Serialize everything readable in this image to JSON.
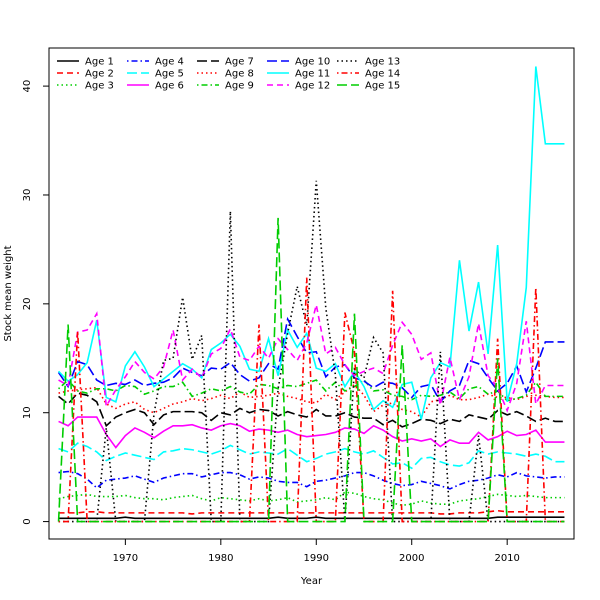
{
  "chart_data": {
    "type": "line",
    "title": "",
    "xlabel": "Year",
    "ylabel": "Stock mean weight",
    "xlim": [
      1962,
      2017
    ],
    "ylim": [
      -1.6,
      43.5
    ],
    "xticks": [
      1970,
      1980,
      1990,
      2000,
      2010
    ],
    "yticks": [
      0,
      10,
      20,
      30,
      40
    ],
    "grid": false,
    "legend_position": "top-left",
    "x": [
      1963,
      1964,
      1965,
      1966,
      1967,
      1968,
      1969,
      1970,
      1971,
      1972,
      1973,
      1974,
      1975,
      1976,
      1977,
      1978,
      1979,
      1980,
      1981,
      1982,
      1983,
      1984,
      1985,
      1986,
      1987,
      1988,
      1989,
      1990,
      1991,
      1992,
      1993,
      1994,
      1995,
      1996,
      1997,
      1998,
      1999,
      2000,
      2001,
      2002,
      2003,
      2004,
      2005,
      2006,
      2007,
      2008,
      2009,
      2010,
      2011,
      2012,
      2013,
      2014,
      2015,
      2016
    ],
    "series": [
      {
        "name": "Age 1",
        "color": "#000000",
        "dash": "solid",
        "values": [
          0.3,
          0.3,
          0.3,
          0.3,
          0.3,
          0.3,
          0.3,
          0.4,
          0.3,
          0.3,
          0.3,
          0.3,
          0.3,
          0.3,
          0.3,
          0.3,
          0.3,
          0.3,
          0.3,
          0.3,
          0.3,
          0.3,
          0.3,
          0.4,
          0.3,
          0.3,
          0.3,
          0.4,
          0.3,
          0.3,
          0.3,
          0.3,
          0.3,
          0.3,
          0.3,
          0.3,
          0.3,
          0.3,
          0.3,
          0.3,
          0.3,
          0.3,
          0.3,
          0.3,
          0.3,
          0.3,
          0.4,
          0.4,
          0.4,
          0.4,
          0.4,
          0.4,
          0.4,
          0.4
        ]
      },
      {
        "name": "Age 2",
        "color": "#ff0000",
        "dash": "dashed",
        "values": [
          0.8,
          0.8,
          0.8,
          0.9,
          0.9,
          0.8,
          0.8,
          0.8,
          0.8,
          0.8,
          0.8,
          0.8,
          0.8,
          0.8,
          0.7,
          0.8,
          0.8,
          0.8,
          0.8,
          0.8,
          0.8,
          0.8,
          0.8,
          0.8,
          0.8,
          0.8,
          0.8,
          0.8,
          0.8,
          0.8,
          0.8,
          0.8,
          0.8,
          0.8,
          0.8,
          0.8,
          0.8,
          0.8,
          0.8,
          0.8,
          0.7,
          0.7,
          0.8,
          0.8,
          0.8,
          0.9,
          1.0,
          0.9,
          0.9,
          0.9,
          0.9,
          0.9,
          0.9,
          0.9
        ]
      },
      {
        "name": "Age 3",
        "color": "#00cd00",
        "dash": "dotted",
        "values": [
          2.1,
          2.3,
          2.4,
          2.5,
          2.3,
          2.3,
          2.3,
          2.4,
          2.2,
          2.1,
          2.1,
          2.0,
          2.2,
          2.3,
          2.4,
          2.1,
          1.9,
          2.2,
          2.1,
          2.0,
          1.9,
          2.1,
          1.9,
          2.0,
          2.2,
          1.8,
          1.9,
          2.0,
          2.2,
          2.0,
          2.7,
          2.6,
          2.3,
          2.1,
          2.0,
          1.7,
          1.5,
          1.6,
          1.9,
          1.7,
          1.6,
          1.6,
          1.9,
          2.0,
          2.1,
          2.3,
          2.5,
          2.4,
          2.3,
          2.4,
          2.3,
          2.2,
          2.2,
          2.2
        ]
      },
      {
        "name": "Age 4",
        "color": "#0000ff",
        "dash": "dashdot",
        "values": [
          4.5,
          4.6,
          4.4,
          3.9,
          3.1,
          3.8,
          3.9,
          4.0,
          4.2,
          3.9,
          3.6,
          4.0,
          4.2,
          4.4,
          4.4,
          4.1,
          4.3,
          4.5,
          4.5,
          4.3,
          3.9,
          4.1,
          4.0,
          3.7,
          3.6,
          3.6,
          3.2,
          3.7,
          3.8,
          4.0,
          4.2,
          4.5,
          4.5,
          4.2,
          3.8,
          3.5,
          3.3,
          3.4,
          3.7,
          3.5,
          3.3,
          3.0,
          3.4,
          3.7,
          3.8,
          4.0,
          4.3,
          4.1,
          4.5,
          4.2,
          4.1,
          4.0,
          4.1,
          4.1
        ]
      },
      {
        "name": "Age 5",
        "color": "#00ffff",
        "dash": "longdash",
        "values": [
          6.7,
          6.4,
          7.2,
          6.9,
          6.4,
          5.6,
          6.0,
          6.3,
          6.1,
          5.9,
          5.7,
          6.4,
          6.5,
          6.7,
          6.6,
          6.4,
          6.2,
          6.5,
          7.0,
          6.6,
          6.2,
          6.4,
          6.3,
          6.2,
          6.7,
          6.1,
          5.5,
          5.8,
          6.2,
          6.4,
          6.7,
          6.4,
          6.2,
          6.5,
          5.9,
          5.3,
          5.4,
          4.9,
          5.8,
          5.9,
          5.5,
          5.2,
          5.1,
          5.4,
          6.5,
          6.2,
          6.4,
          6.3,
          6.2,
          6.0,
          6.2,
          6.0,
          5.5,
          5.5
        ]
      },
      {
        "name": "Age 6",
        "color": "#ff00ff",
        "dash": "solid",
        "values": [
          9.2,
          8.8,
          9.6,
          9.6,
          9.6,
          8.0,
          6.8,
          7.9,
          8.6,
          8.2,
          7.7,
          8.3,
          8.8,
          8.8,
          8.9,
          8.6,
          8.4,
          8.8,
          9.0,
          8.8,
          8.3,
          8.5,
          8.4,
          8.2,
          8.4,
          8.0,
          7.8,
          7.9,
          8.0,
          8.2,
          8.6,
          8.5,
          8.1,
          8.8,
          8.4,
          7.8,
          7.4,
          7.6,
          7.4,
          7.6,
          6.9,
          7.5,
          7.2,
          7.2,
          8.2,
          7.5,
          7.8,
          8.3,
          7.9,
          8.0,
          8.4,
          7.3,
          7.3,
          7.3
        ]
      },
      {
        "name": "Age 7",
        "color": "#000000",
        "dash": "longdash",
        "values": [
          11.5,
          10.8,
          11.8,
          11.6,
          11.0,
          8.8,
          9.6,
          10.0,
          10.3,
          10.0,
          8.9,
          9.8,
          10.1,
          10.1,
          10.1,
          10.0,
          9.3,
          10.0,
          9.8,
          10.4,
          10.0,
          10.3,
          10.2,
          9.7,
          10.1,
          9.8,
          9.6,
          10.3,
          9.7,
          9.7,
          10.0,
          9.6,
          9.5,
          9.5,
          8.9,
          9.3,
          8.7,
          9.0,
          9.4,
          9.3,
          9.0,
          9.4,
          9.2,
          9.8,
          9.6,
          9.4,
          10.2,
          9.8,
          10.1,
          9.7,
          9.2,
          9.5,
          9.2,
          9.2
        ]
      },
      {
        "name": "Age 8",
        "color": "#ff0000",
        "dash": "dotted",
        "values": [
          11.8,
          12.0,
          12.1,
          12.2,
          12.3,
          10.8,
          10.4,
          10.8,
          11.0,
          10.3,
          10.0,
          10.4,
          10.8,
          11.0,
          11.3,
          11.1,
          11.3,
          11.6,
          11.3,
          11.9,
          11.4,
          11.5,
          11.6,
          11.8,
          11.5,
          11.3,
          11.0,
          10.9,
          11.7,
          11.2,
          11.9,
          12.6,
          11.6,
          10.1,
          10.7,
          10.9,
          10.3,
          10.1,
          9.6,
          11.0,
          11.2,
          11.6,
          11.2,
          11.2,
          11.4,
          11.7,
          11.4,
          11.4,
          11.2,
          11.5,
          11.6,
          11.5,
          11.4,
          11.4
        ]
      },
      {
        "name": "Age 9",
        "color": "#00cd00",
        "dash": "dashdot",
        "values": [
          12.2,
          13.0,
          12.0,
          11.8,
          12.2,
          12.2,
          12.0,
          12.5,
          12.4,
          11.7,
          12.0,
          12.4,
          12.4,
          12.8,
          11.5,
          11.8,
          12.2,
          12.0,
          12.4,
          11.9,
          11.7,
          12.6,
          12.5,
          12.2,
          12.5,
          12.4,
          12.7,
          13.0,
          12.0,
          12.8,
          12.0,
          12.4,
          13.0,
          12.0,
          12.1,
          11.6,
          11.5,
          11.2,
          11.6,
          11.5,
          11.6,
          11.9,
          11.3,
          12.2,
          12.4,
          11.7,
          12.0,
          11.1,
          11.3,
          11.6,
          12.8,
          11.5,
          11.5,
          11.5
        ]
      },
      {
        "name": "Age 10",
        "color": "#0000ff",
        "dash": "longdash",
        "values": [
          13.7,
          12.4,
          14.7,
          14.4,
          13.0,
          12.5,
          12.7,
          12.6,
          13.0,
          12.5,
          12.7,
          12.8,
          13.2,
          14.1,
          13.7,
          13.4,
          14.1,
          14.0,
          14.6,
          13.5,
          12.9,
          13.2,
          14.5,
          14.0,
          18.6,
          17.0,
          15.5,
          15.6,
          13.3,
          14.2,
          14.4,
          13.2,
          12.9,
          12.3,
          12.8,
          12.7,
          12.3,
          11.4,
          12.4,
          12.6,
          11.0,
          12.0,
          12.5,
          14.8,
          14.5,
          13.2,
          12.0,
          12.7,
          14.3,
          11.9,
          14.1,
          16.5,
          16.5,
          16.5
        ]
      },
      {
        "name": "Age 11",
        "color": "#00ffff",
        "dash": "solid",
        "values": [
          13.8,
          12.9,
          13.5,
          14.6,
          18.5,
          11.4,
          11.0,
          14.3,
          15.6,
          14.2,
          12.4,
          13.1,
          13.8,
          14.5,
          14.0,
          13.2,
          15.8,
          16.4,
          17.2,
          16.1,
          14.0,
          13.8,
          16.8,
          13.4,
          17.6,
          16.0,
          17.3,
          14.1,
          13.8,
          14.5,
          12.4,
          13.8,
          12.4,
          10.3,
          11.1,
          10.5,
          12.6,
          12.8,
          9.4,
          13.2,
          14.6,
          14.2,
          24.0,
          17.5,
          22.0,
          15.4,
          25.4,
          11.0,
          14.5,
          21.5,
          41.8,
          34.7,
          34.7,
          34.7
        ]
      },
      {
        "name": "Age 12",
        "color": "#ff00ff",
        "dash": "dashed",
        "values": [
          13.0,
          12.5,
          17.4,
          17.6,
          19.1,
          10.6,
          12.1,
          13.3,
          14.7,
          13.7,
          13.1,
          14.2,
          17.6,
          13.0,
          14.0,
          13.2,
          15.4,
          15.9,
          17.7,
          15.1,
          14.8,
          16.1,
          15.0,
          16.8,
          15.8,
          14.8,
          16.4,
          19.9,
          15.4,
          16.0,
          14.4,
          13.4,
          13.8,
          14.1,
          13.6,
          16.2,
          18.3,
          17.2,
          14.9,
          15.5,
          10.7,
          15.1,
          11.2,
          13.3,
          18.2,
          13.4,
          12.3,
          10.2,
          12.7,
          18.4,
          10.8,
          12.5,
          12.5,
          12.5
        ]
      },
      {
        "name": "Age 13",
        "color": "#000000",
        "dash": "dotted",
        "values": [
          0,
          0,
          0,
          0,
          0,
          8.6,
          0,
          0,
          0,
          0,
          9.9,
          14.8,
          15.0,
          20.6,
          14.9,
          17.1,
          0,
          0,
          28.5,
          0,
          0,
          0,
          0,
          12.2,
          17.3,
          21.6,
          18.0,
          31.3,
          19.6,
          13.5,
          0,
          14.0,
          13.2,
          16.9,
          15.5,
          0,
          0,
          0,
          0,
          0,
          15.6,
          0,
          0,
          0,
          7.9,
          0,
          0,
          0,
          0,
          0,
          0,
          0,
          0,
          0
        ]
      },
      {
        "name": "Age 14",
        "color": "#ff0000",
        "dash": "dashdot",
        "values": [
          0,
          0,
          17.5,
          0,
          0,
          0,
          0,
          0,
          0,
          0,
          0,
          0,
          0,
          0,
          0,
          0,
          0,
          0,
          0,
          0,
          0,
          18.1,
          0,
          0,
          0,
          0,
          22.4,
          0,
          0,
          0,
          19.2,
          15.6,
          0,
          0,
          0,
          21.2,
          0,
          0,
          0,
          0,
          0,
          0,
          0,
          0,
          0,
          0,
          16.8,
          0,
          0,
          0,
          21.5,
          0,
          0,
          0
        ]
      },
      {
        "name": "Age 15",
        "color": "#00cd00",
        "dash": "longdash",
        "values": [
          0,
          18.1,
          0,
          0,
          0,
          0,
          0,
          0,
          0,
          0,
          0,
          0,
          0,
          0,
          0,
          0,
          0,
          0,
          0,
          0,
          0,
          0,
          0,
          27.9,
          0,
          0,
          0,
          0,
          0,
          0,
          0,
          19.1,
          0,
          0,
          0,
          0,
          16.2,
          0,
          0,
          0,
          0,
          0,
          0,
          0,
          0,
          0,
          15.0,
          0,
          0,
          0,
          0,
          0,
          0,
          0
        ]
      }
    ]
  }
}
